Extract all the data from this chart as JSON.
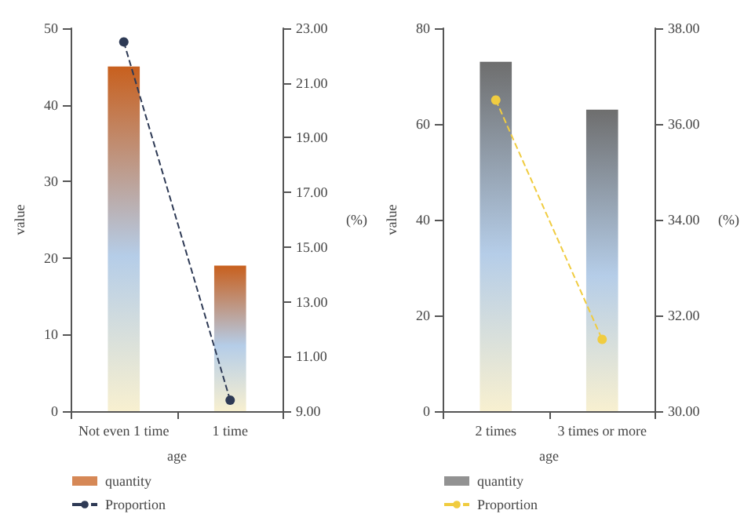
{
  "chart_data": [
    {
      "type": "bar",
      "xlabel": "age",
      "ylabel": "value",
      "y2label": "(%)",
      "categories": [
        "Not even 1 time",
        "1 time"
      ],
      "series": [
        {
          "name": "quantity",
          "color": "#c8601e",
          "values": [
            45,
            19
          ]
        },
        {
          "name": "Proportion",
          "type": "line",
          "axis": "y2",
          "color": "#2e3a55",
          "values": [
            22.5,
            9.4
          ],
          "marker": "circle",
          "line_style": "dashed"
        }
      ],
      "ylim": [
        0,
        50
      ],
      "yticks": [
        0,
        10,
        20,
        30,
        40,
        50
      ],
      "y2lim": [
        9,
        23
      ],
      "y2ticks": [
        {
          "value": 9,
          "label": "9.00"
        },
        {
          "value": 11,
          "label": "11.00"
        },
        {
          "value": 13,
          "label": "13.00"
        },
        {
          "value": 15,
          "label": "15.00"
        },
        {
          "value": 17,
          "label": "17.00"
        },
        {
          "value": 19,
          "label": "19.00"
        },
        {
          "value": 21,
          "label": "21.00"
        },
        {
          "value": 23,
          "label": "23.00"
        }
      ],
      "grid": false,
      "legend": "bottom left"
    },
    {
      "type": "bar",
      "xlabel": "age",
      "ylabel": "value",
      "y2label": "(%)",
      "categories": [
        "2 times",
        "3 times or more"
      ],
      "series": [
        {
          "name": "quantity",
          "color": "#6e6e6e",
          "values": [
            73,
            63
          ]
        },
        {
          "name": "Proportion",
          "type": "line",
          "axis": "y2",
          "color": "#f0cc40",
          "values": [
            36.5,
            31.5
          ],
          "marker": "circle",
          "line_style": "dashed"
        }
      ],
      "ylim": [
        0,
        80
      ],
      "yticks": [
        0,
        20,
        40,
        60,
        80
      ],
      "y2lim": [
        30,
        38
      ],
      "y2ticks": [
        {
          "value": 30,
          "label": "30.00"
        },
        {
          "value": 32,
          "label": "32.00"
        },
        {
          "value": 34,
          "label": "34.00"
        },
        {
          "value": 36,
          "label": "36.00"
        },
        {
          "value": 38,
          "label": "38.00"
        }
      ],
      "grid": false,
      "legend": "bottom left"
    }
  ]
}
